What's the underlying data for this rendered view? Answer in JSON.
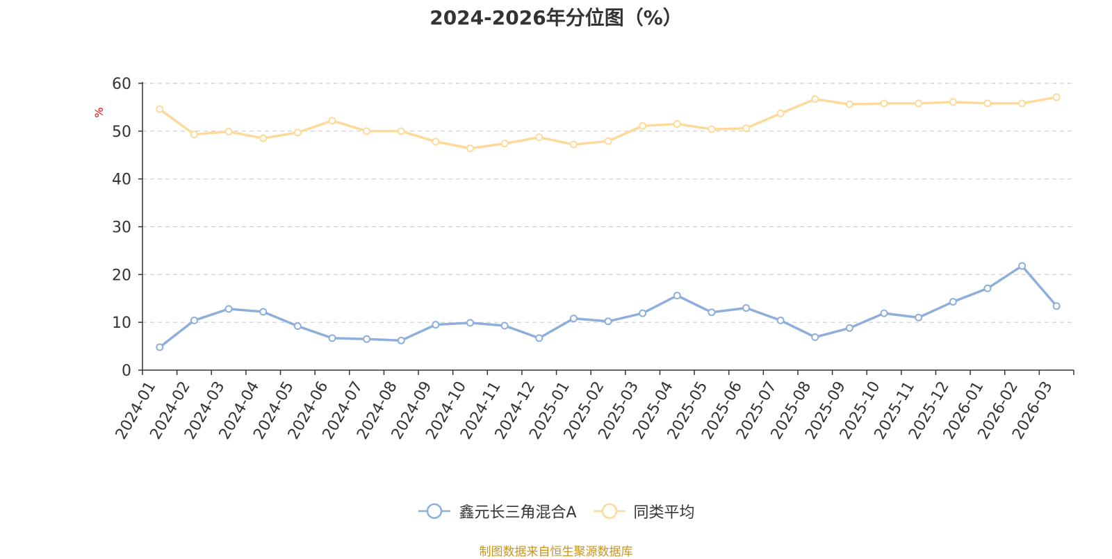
{
  "chart_data": {
    "type": "line",
    "title": "2024-2026年分位图（%）",
    "ylabel": "%",
    "ylim": [
      0,
      60
    ],
    "yticks": [
      0,
      10,
      20,
      30,
      40,
      50,
      60
    ],
    "grid": true,
    "legend_position": "bottom",
    "categories": [
      "2024-01",
      "2024-02",
      "2024-03",
      "2024-04",
      "2024-05",
      "2024-06",
      "2024-07",
      "2024-08",
      "2024-09",
      "2024-10",
      "2024-11",
      "2024-12",
      "2025-01",
      "2025-02",
      "2025-03",
      "2025-04",
      "2025-05",
      "2025-06",
      "2025-07",
      "2025-08",
      "2025-09",
      "2025-10",
      "2025-11",
      "2025-12",
      "2026-01",
      "2026-02",
      "2026-03"
    ],
    "series": [
      {
        "name": "鑫元长三角混合A",
        "color": "#8eaedb",
        "values": [
          4.8,
          10.4,
          12.8,
          12.2,
          9.2,
          6.7,
          6.5,
          6.2,
          9.5,
          9.9,
          9.3,
          6.7,
          10.8,
          10.2,
          11.9,
          15.6,
          12.1,
          13.0,
          10.4,
          6.9,
          8.8,
          11.9,
          11.0,
          14.3,
          17.1,
          21.8,
          13.4
        ]
      },
      {
        "name": "同类平均",
        "color": "#fdd99a",
        "values": [
          54.6,
          49.3,
          49.9,
          48.5,
          49.7,
          52.2,
          50.0,
          50.0,
          47.8,
          46.4,
          47.4,
          48.7,
          47.2,
          47.9,
          51.1,
          51.5,
          50.4,
          50.6,
          53.7,
          56.7,
          55.6,
          55.8,
          55.8,
          56.1,
          55.8,
          55.8,
          57.1
        ]
      }
    ]
  },
  "source_text": "制图数据来自恒生聚源数据库",
  "colors": {
    "axis": "#333333",
    "grid": "#cccccc",
    "ylabel": "#ff0000",
    "source": "#c8951e"
  }
}
